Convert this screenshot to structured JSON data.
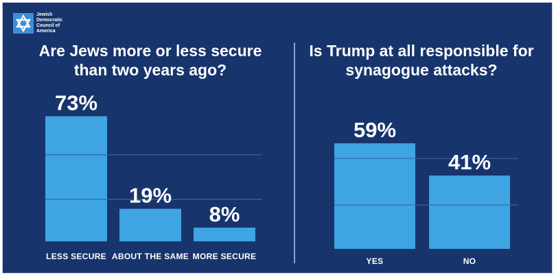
{
  "logo": {
    "lines": [
      "Jewish",
      "Democratic",
      "Council of",
      "America"
    ],
    "icon": "star-of-david-icon"
  },
  "colors": {
    "background": "#17346d",
    "bar": "#3ea4e2",
    "gridline": "#3566a6",
    "text": "#ffffff"
  },
  "chart_data": [
    {
      "type": "bar",
      "title": "Are Jews more or less secure than two years ago?",
      "categories": [
        "LESS SECURE",
        "ABOUT THE SAME",
        "MORE SECURE"
      ],
      "values": [
        73,
        19,
        8
      ],
      "value_labels": [
        "73%",
        "19%",
        "8%"
      ],
      "ylim": [
        0,
        100
      ],
      "grid": true
    },
    {
      "type": "bar",
      "title": "Is Trump at all responsible for synagogue attacks?",
      "categories": [
        "YES",
        "NO"
      ],
      "values": [
        59,
        41
      ],
      "value_labels": [
        "59%",
        "41%"
      ],
      "ylim": [
        0,
        100
      ],
      "grid": true
    }
  ]
}
